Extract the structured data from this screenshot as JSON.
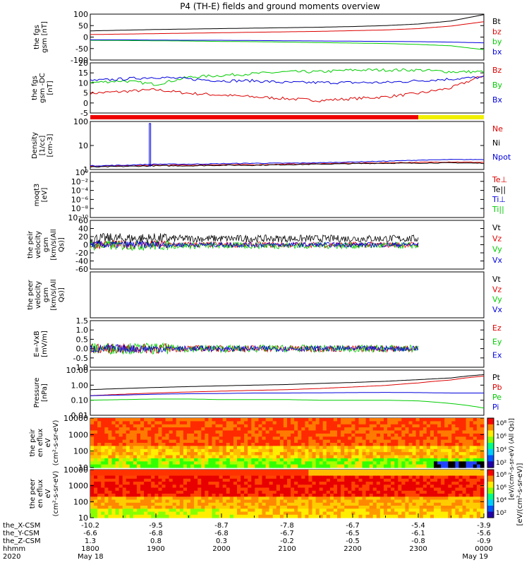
{
  "title": "P4 (TH-E) fields and ground moments overview",
  "time_axis": {
    "rows": [
      {
        "label": "the_X-CSM",
        "values": [
          "-10.2",
          "-9.5",
          "-8.7",
          "-7.8",
          "-6.7",
          "-5.4",
          "-3.9"
        ]
      },
      {
        "label": "the_Y-CSM",
        "values": [
          "-6.6",
          "-6.8",
          "-6.8",
          "-6.7",
          "-6.5",
          "-6.1",
          "-5.6"
        ]
      },
      {
        "label": "the_Z-CSM",
        "values": [
          "1.3",
          "0.8",
          "0.3",
          "-0.2",
          "-0.5",
          "-0.8",
          "-0.9"
        ]
      },
      {
        "label": "hhmm",
        "values": [
          "1800",
          "1900",
          "2000",
          "2100",
          "2200",
          "2300",
          "0000"
        ]
      },
      {
        "label": "2020",
        "values": [
          "May 18",
          "",
          "",
          "",
          "",
          "",
          "May 19"
        ]
      }
    ]
  },
  "colors": {
    "black": "#000000",
    "red": "#dd0000",
    "green": "#00cc00",
    "blue": "#0000dd",
    "yellow": "#f0f000"
  },
  "chart_data": [
    {
      "id": "fgs-gsm",
      "type": "line",
      "ylabel": "the fgs gsm [nT]",
      "ylim": [
        -100,
        100
      ],
      "yticks": [
        "100",
        "50",
        "0",
        "-50",
        "-100"
      ],
      "x": [
        18.0,
        18.5,
        19.0,
        19.5,
        20.0,
        20.5,
        21.0,
        21.5,
        22.0,
        22.5,
        23.0,
        23.5,
        24.0
      ],
      "series": [
        {
          "name": "Bt",
          "color": "black",
          "values": [
            27,
            30,
            33,
            35,
            37,
            39,
            41,
            43,
            46,
            50,
            57,
            70,
            98
          ]
        },
        {
          "name": "bz",
          "color": "red",
          "values": [
            11,
            13,
            15,
            17,
            19,
            21,
            23,
            25,
            28,
            31,
            37,
            48,
            67
          ]
        },
        {
          "name": "by",
          "color": "green",
          "values": [
            -14,
            -15,
            -16,
            -17,
            -19,
            -20,
            -22,
            -24,
            -26,
            -28,
            -32,
            -38,
            -55
          ]
        },
        {
          "name": "bx",
          "color": "blue",
          "values": [
            -12,
            -12,
            -13,
            -14,
            -14,
            -15,
            -16,
            -17,
            -18,
            -19,
            -20,
            -22,
            -25
          ]
        }
      ]
    },
    {
      "id": "fgs-gsm-dc",
      "type": "line",
      "ylabel": "the fgs gsm -DC [nT]",
      "ylim": [
        -8,
        20
      ],
      "yticks": [
        "20",
        "15",
        "10",
        "5",
        "0",
        "-5"
      ],
      "x": [
        18.0,
        18.5,
        19.0,
        19.5,
        20.0,
        20.5,
        21.0,
        21.5,
        22.0,
        22.5,
        23.0,
        23.5,
        24.0
      ],
      "series": [
        {
          "name": "Bz",
          "color": "red",
          "values": [
            3,
            4,
            5,
            3,
            2,
            1,
            0,
            -1,
            0,
            1,
            3,
            6,
            13
          ]
        },
        {
          "name": "By",
          "color": "green",
          "values": [
            9,
            10,
            8,
            12,
            13,
            14,
            15,
            15,
            16,
            16,
            16,
            15,
            15
          ]
        },
        {
          "name": "Bx",
          "color": "blue",
          "values": [
            10,
            11,
            12,
            11,
            10,
            10,
            9,
            9,
            9,
            9,
            10,
            11,
            12
          ]
        }
      ]
    },
    {
      "id": "moments-density",
      "type": "line",
      "ylabel": "Density [1/cc] [cm-3]",
      "yscale": "log",
      "ylim": [
        1,
        200
      ],
      "yticks": [
        "100",
        "10",
        "1"
      ],
      "x": [
        18.0,
        18.5,
        19.0,
        19.5,
        20.0,
        20.5,
        21.0,
        21.5,
        22.0,
        22.5,
        23.0,
        23.5,
        24.0
      ],
      "series": [
        {
          "name": "Ne",
          "color": "red",
          "values": [
            1.4,
            1.5,
            1.6,
            1.6,
            1.7,
            1.7,
            1.8,
            1.9,
            2.0,
            2.1,
            2.2,
            2.3,
            2.2
          ]
        },
        {
          "name": "Ni",
          "color": "black",
          "values": [
            1.3,
            1.4,
            1.5,
            1.5,
            1.6,
            1.6,
            1.7,
            1.8,
            1.9,
            2.0,
            2.0,
            2.1,
            2.0
          ]
        },
        {
          "name": "Npot",
          "color": "blue",
          "values": [
            1.5,
            1.6,
            1.8,
            1.8,
            1.9,
            2.0,
            2.0,
            2.1,
            2.3,
            2.5,
            2.8,
            3.0,
            3.0
          ]
        }
      ],
      "annotations": [
        {
          "series": "Npot",
          "x": 18.91,
          "value": 160
        }
      ]
    },
    {
      "id": "moments-temperature",
      "type": "line",
      "ylabel": "moqt3 [eV]",
      "yscale": "log",
      "yticks": [
        "10⁰",
        "10⁻²",
        "10⁻⁴",
        "10⁻⁶",
        "10⁻⁸",
        "10⁻¹⁰"
      ],
      "series": [
        {
          "name": "Te⊥",
          "color": "red"
        },
        {
          "name": "Te||",
          "color": "black"
        },
        {
          "name": "Ti⊥",
          "color": "blue"
        },
        {
          "name": "Ti||",
          "color": "green"
        }
      ]
    },
    {
      "id": "peir-velocity",
      "type": "line",
      "ylabel": "the peir velocity gsm [km/s(All Qs)]",
      "ylim": [
        -60,
        60
      ],
      "yticks": [
        "60",
        "40",
        "20",
        "0",
        "-20",
        "-40",
        "-60"
      ],
      "x_end": 23.0,
      "series": [
        {
          "name": "Vt",
          "color": "black",
          "base": 15,
          "noise": 9
        },
        {
          "name": "Vz",
          "color": "red",
          "base": 0,
          "noise": 7
        },
        {
          "name": "Vy",
          "color": "green",
          "base": -2,
          "noise": 8
        },
        {
          "name": "Vx",
          "color": "blue",
          "base": 0,
          "noise": 6
        }
      ]
    },
    {
      "id": "peer-velocity",
      "type": "line",
      "ylabel": "the peer velocity gsm [km/s(All Qs)]",
      "series": [
        {
          "name": "Vt",
          "color": "black"
        },
        {
          "name": "Vz",
          "color": "red"
        },
        {
          "name": "Vy",
          "color": "green"
        },
        {
          "name": "Vx",
          "color": "blue"
        }
      ]
    },
    {
      "id": "efield",
      "type": "line",
      "ylabel": "E=-VxB [mV/m]",
      "ylim": [
        -1,
        1.5
      ],
      "yticks": [
        "1.5",
        "1.0",
        "0.5",
        "0.0",
        "-0.5",
        "-1.0"
      ],
      "x_end": 23.0,
      "series": [
        {
          "name": "Ez",
          "color": "red",
          "base": 0,
          "noise": 0.18
        },
        {
          "name": "Ey",
          "color": "green",
          "base": 0,
          "noise": 0.2
        },
        {
          "name": "Ex",
          "color": "blue",
          "base": 0,
          "noise": 0.15
        }
      ]
    },
    {
      "id": "pressure",
      "type": "line",
      "ylabel": "Pressure [nPa]",
      "yscale": "log",
      "ylim": [
        0.01,
        10
      ],
      "yticks": [
        "10.00",
        "1.00",
        "0.10",
        "0.01"
      ],
      "x": [
        18.0,
        18.5,
        19.0,
        19.5,
        20.0,
        20.5,
        21.0,
        21.5,
        22.0,
        22.5,
        23.0,
        23.5,
        24.0
      ],
      "series": [
        {
          "name": "Pt",
          "color": "black",
          "values": [
            0.5,
            0.6,
            0.7,
            0.8,
            0.9,
            1.0,
            1.1,
            1.3,
            1.5,
            1.8,
            2.3,
            3.0,
            5.0
          ]
        },
        {
          "name": "Pb",
          "color": "red",
          "values": [
            0.2,
            0.25,
            0.3,
            0.35,
            0.4,
            0.45,
            0.5,
            0.6,
            0.75,
            0.95,
            1.4,
            2.2,
            4.0
          ]
        },
        {
          "name": "Pe",
          "color": "green",
          "values": [
            0.1,
            0.11,
            0.12,
            0.12,
            0.11,
            0.11,
            0.11,
            0.1,
            0.1,
            0.1,
            0.09,
            0.06,
            0.03
          ]
        },
        {
          "name": "Pi",
          "color": "blue",
          "values": [
            0.2,
            0.22,
            0.25,
            0.27,
            0.28,
            0.3,
            0.3,
            0.31,
            0.32,
            0.33,
            0.32,
            0.3,
            0.3
          ]
        }
      ]
    },
    {
      "id": "peir-eflux",
      "type": "heatmap",
      "ylabel": "the peir en eflux eV (cm²-s-sr-eV)",
      "yscale": "log",
      "ylim": [
        5,
        20000
      ],
      "yticks": [
        "10000",
        "1000",
        "100",
        "10"
      ]
    },
    {
      "id": "peer-eflux",
      "type": "heatmap",
      "ylabel": "the peer en eflux eV (cm²-s-sr-eV)",
      "yscale": "log",
      "ylim": [
        5,
        20000
      ],
      "yticks": [
        "10000",
        "1000",
        "100",
        "10"
      ]
    }
  ],
  "colorbar": {
    "label": "[eV/(cm²-s-sr-eV)]",
    "upper_label": "[eV/(cm²-s-sr-eV) (All Qs)]",
    "ticks": [
      "10⁸",
      "10⁶",
      "10⁴",
      "10²"
    ]
  }
}
